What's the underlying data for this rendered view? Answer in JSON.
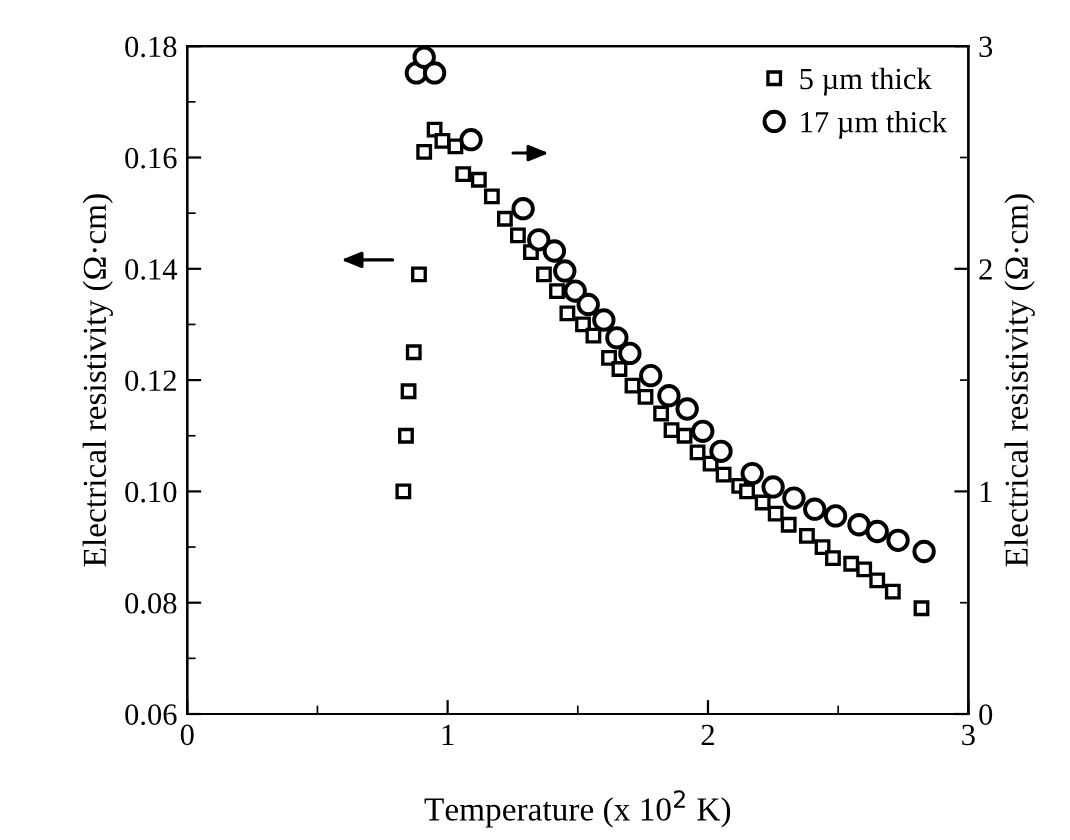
{
  "chart_data": {
    "type": "scatter",
    "xlabel": "Temperature (x 10$^{2}$ K)",
    "ylabel": "Electrical resistivity (Ω·cm)",
    "y2label": "Electrical resistivity (Ω·cm)",
    "xlim": [
      0,
      3
    ],
    "xticks": [
      0,
      1,
      2,
      3
    ],
    "ylim": [
      0.06,
      0.18
    ],
    "yticks": [
      {
        "value": 0.06,
        "label": "0.06"
      },
      {
        "value": 0.08,
        "label": "0.08"
      },
      {
        "value": 0.1,
        "label": "0.10"
      },
      {
        "value": 0.12,
        "label": "0.12"
      },
      {
        "value": 0.14,
        "label": "0.14"
      },
      {
        "value": 0.16,
        "label": "0.16"
      },
      {
        "value": 0.18,
        "label": "0.18"
      }
    ],
    "y2lim": [
      0,
      3
    ],
    "y2ticks": [
      0,
      1,
      2,
      3
    ],
    "legend": "top right",
    "grid": false,
    "series": [
      {
        "name": "5 µm thick",
        "color": "#000000",
        "marker": "square",
        "x": [
          0.83,
          0.84,
          0.85,
          0.87,
          0.89,
          0.91,
          0.95,
          0.98,
          1.03,
          1.06,
          1.12,
          1.17,
          1.22,
          1.27,
          1.32,
          1.37,
          1.42,
          1.46,
          1.52,
          1.56,
          1.62,
          1.66,
          1.71,
          1.76,
          1.82,
          1.86,
          1.91,
          1.96,
          2.01,
          2.06,
          2.12,
          2.15,
          2.21,
          2.26,
          2.31,
          2.38,
          2.44,
          2.48,
          2.55,
          2.6,
          2.65,
          2.71,
          2.82
        ],
        "values": [
          0.1,
          0.11,
          0.118,
          0.125,
          0.139,
          0.161,
          0.165,
          0.163,
          0.162,
          0.157,
          0.156,
          0.153,
          0.149,
          0.146,
          0.143,
          0.139,
          0.136,
          0.132,
          0.13,
          0.128,
          0.124,
          0.122,
          0.119,
          0.117,
          0.114,
          0.111,
          0.11,
          0.107,
          0.105,
          0.103,
          0.101,
          0.1,
          0.098,
          0.096,
          0.094,
          0.092,
          0.09,
          0.088,
          0.087,
          0.086,
          0.084,
          0.082,
          0.079
        ]
      },
      {
        "name": "17 µm thick",
        "color": "#000000",
        "marker": "circle",
        "axis": "y2",
        "x": [
          0.88,
          0.91,
          0.95,
          1.09,
          1.29,
          1.35,
          1.41,
          1.45,
          1.49,
          1.54,
          1.6,
          1.65,
          1.7,
          1.78,
          1.85,
          1.92,
          1.98,
          2.05,
          2.17,
          2.25,
          2.33,
          2.41,
          2.49,
          2.58,
          2.65,
          2.73,
          2.83
        ],
        "values": [
          2.88,
          2.95,
          2.88,
          2.58,
          2.27,
          2.13,
          2.08,
          1.99,
          1.9,
          1.84,
          1.77,
          1.69,
          1.62,
          1.52,
          1.43,
          1.37,
          1.27,
          1.18,
          1.08,
          1.02,
          0.97,
          0.92,
          0.89,
          0.85,
          0.82,
          0.78,
          0.73
        ]
      }
    ]
  }
}
